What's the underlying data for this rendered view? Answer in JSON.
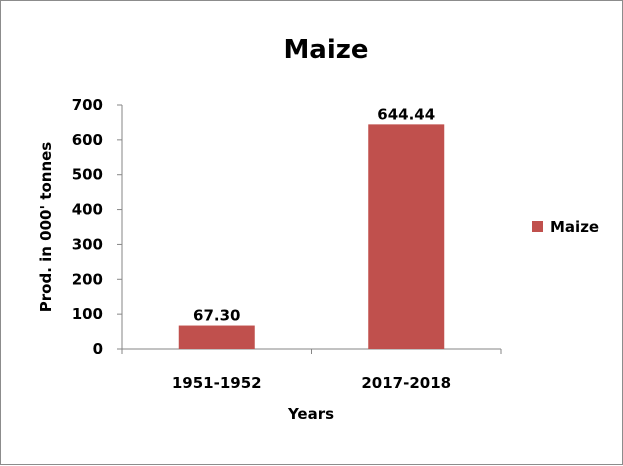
{
  "chart_data": {
    "type": "bar",
    "title": "Maize",
    "categories": [
      "1951-1952",
      "2017-2018"
    ],
    "series": [
      {
        "name": "Maize",
        "values": [
          67.3,
          644.44
        ],
        "labels": [
          "67.30",
          "644.44"
        ],
        "color": "#c0504d"
      }
    ],
    "xlabel": "Years",
    "ylabel": "Prod. in 000' tonnes",
    "ylim": [
      0,
      700
    ],
    "yticks": [
      0,
      100,
      200,
      300,
      400,
      500,
      600,
      700
    ],
    "grid": false,
    "legend_position": "right"
  }
}
